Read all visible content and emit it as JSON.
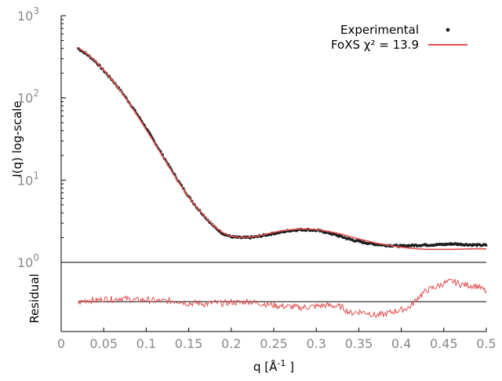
{
  "chart_data": [
    {
      "type": "scatter",
      "panel": "main",
      "ylabel": "I(q) log-scale",
      "yscale": "log",
      "xlim": [
        0,
        0.5
      ],
      "ylim": [
        1,
        1000
      ],
      "y_tick_labels": [
        {
          "base": "10",
          "exp": "3"
        },
        {
          "base": "10",
          "exp": "2"
        },
        {
          "base": "10",
          "exp": "1"
        },
        {
          "base": "10",
          "exp": "0"
        }
      ],
      "grid": false,
      "legend": {
        "placement": "top-right"
      },
      "series": [
        {
          "name": "Experimental",
          "kind": "points",
          "color": "#1a1a1a",
          "x": [
            0.02,
            0.03,
            0.04,
            0.05,
            0.06,
            0.07,
            0.08,
            0.09,
            0.1,
            0.11,
            0.12,
            0.13,
            0.14,
            0.15,
            0.16,
            0.17,
            0.18,
            0.19,
            0.2,
            0.21,
            0.22,
            0.23,
            0.24,
            0.25,
            0.26,
            0.27,
            0.28,
            0.29,
            0.3,
            0.31,
            0.32,
            0.33,
            0.34,
            0.35,
            0.36,
            0.37,
            0.38,
            0.39,
            0.4,
            0.41,
            0.42,
            0.43,
            0.44,
            0.45,
            0.46,
            0.47,
            0.48,
            0.49,
            0.5
          ],
          "y": [
            400,
            340,
            280,
            215,
            165,
            123,
            88,
            62,
            43,
            29,
            19.5,
            13.2,
            9.0,
            6.3,
            4.6,
            3.5,
            2.7,
            2.25,
            2.05,
            2.0,
            2.0,
            2.05,
            2.15,
            2.25,
            2.35,
            2.45,
            2.5,
            2.5,
            2.45,
            2.35,
            2.2,
            2.05,
            1.9,
            1.8,
            1.72,
            1.66,
            1.62,
            1.6,
            1.58,
            1.6,
            1.62,
            1.63,
            1.64,
            1.65,
            1.68,
            1.66,
            1.64,
            1.62,
            1.62
          ]
        },
        {
          "name": "FoXS χ² = 13.9",
          "kind": "line",
          "color": "#e05050",
          "x": [
            0.02,
            0.03,
            0.04,
            0.05,
            0.06,
            0.07,
            0.08,
            0.09,
            0.1,
            0.11,
            0.12,
            0.13,
            0.14,
            0.15,
            0.16,
            0.17,
            0.18,
            0.19,
            0.2,
            0.21,
            0.22,
            0.23,
            0.24,
            0.25,
            0.26,
            0.27,
            0.28,
            0.29,
            0.3,
            0.31,
            0.32,
            0.33,
            0.34,
            0.35,
            0.36,
            0.37,
            0.38,
            0.39,
            0.4,
            0.41,
            0.42,
            0.43,
            0.44,
            0.45,
            0.46,
            0.47,
            0.48,
            0.49,
            0.5
          ],
          "y": [
            410,
            345,
            283,
            218,
            165,
            122,
            86,
            60,
            41,
            28,
            18.9,
            12.8,
            8.8,
            6.2,
            4.6,
            3.5,
            2.75,
            2.3,
            2.08,
            2.02,
            2.02,
            2.08,
            2.2,
            2.32,
            2.42,
            2.5,
            2.55,
            2.55,
            2.5,
            2.42,
            2.32,
            2.2,
            2.05,
            1.93,
            1.82,
            1.72,
            1.65,
            1.58,
            1.53,
            1.49,
            1.46,
            1.44,
            1.44,
            1.44,
            1.44,
            1.45,
            1.46,
            1.46,
            1.46
          ]
        }
      ]
    },
    {
      "type": "line",
      "panel": "residual",
      "xlabel": "q [Å⁻¹]",
      "ylabel": "Residual",
      "xlim": [
        0,
        0.5
      ],
      "x_tick_labels": [
        "0",
        "0.05",
        "0.1",
        "0.15",
        "0.2",
        "0.25",
        "0.3",
        "0.35",
        "0.4",
        "0.45",
        "0.5"
      ],
      "grid": false,
      "series": [
        {
          "name": "",
          "kind": "reference-line",
          "color": "#000000",
          "y_constant": 0
        },
        {
          "name": "",
          "kind": "line",
          "color": "#e05050",
          "x": [
            0.02,
            0.03,
            0.04,
            0.05,
            0.06,
            0.07,
            0.08,
            0.09,
            0.1,
            0.11,
            0.12,
            0.13,
            0.14,
            0.15,
            0.16,
            0.17,
            0.18,
            0.19,
            0.2,
            0.21,
            0.22,
            0.23,
            0.24,
            0.25,
            0.26,
            0.27,
            0.28,
            0.29,
            0.3,
            0.31,
            0.32,
            0.33,
            0.34,
            0.35,
            0.36,
            0.37,
            0.38,
            0.39,
            0.4,
            0.41,
            0.42,
            0.43,
            0.44,
            0.45,
            0.46,
            0.47,
            0.48,
            0.49,
            0.5
          ],
          "y": [
            -0.03,
            0.04,
            0.02,
            0.06,
            0.05,
            0.08,
            0.05,
            0.03,
            0.04,
            0.02,
            0.01,
            0.02,
            0.01,
            -0.04,
            -0.03,
            -0.05,
            -0.02,
            -0.04,
            -0.01,
            -0.02,
            0.01,
            -0.03,
            -0.05,
            -0.08,
            -0.1,
            -0.11,
            -0.13,
            -0.12,
            -0.1,
            -0.08,
            -0.09,
            -0.12,
            -0.25,
            -0.22,
            -0.24,
            -0.3,
            -0.28,
            -0.22,
            -0.18,
            -0.12,
            0.1,
            0.25,
            0.32,
            0.4,
            0.45,
            0.38,
            0.36,
            0.34,
            0.22
          ]
        }
      ]
    }
  ]
}
